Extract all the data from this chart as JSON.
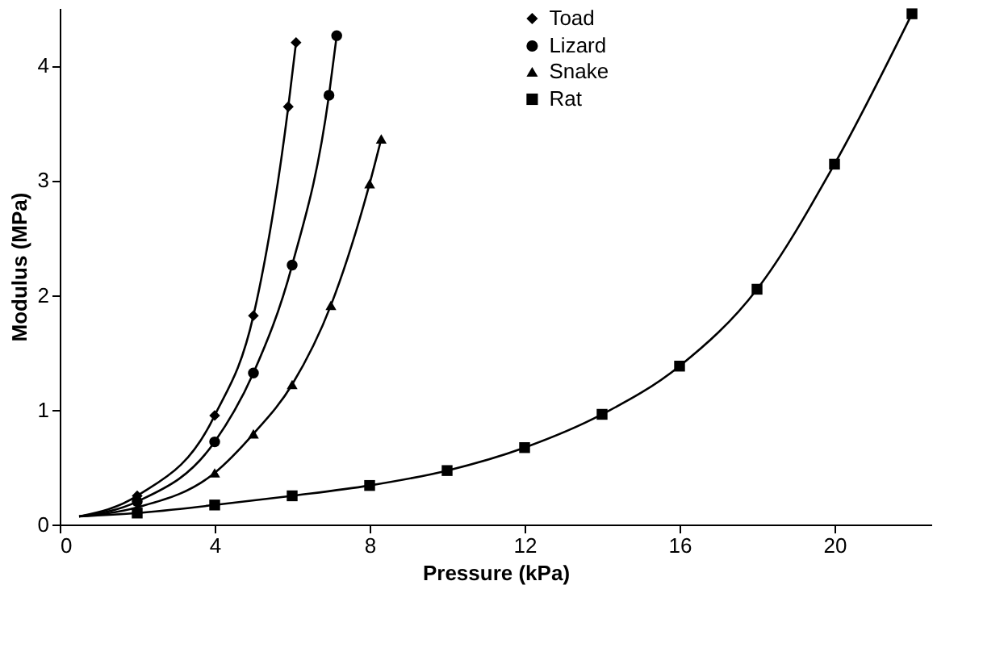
{
  "chart_data": {
    "type": "scatter",
    "xlabel": "Pressure (kPa)",
    "ylabel": "Modulus (MPa)",
    "xlim": [
      0,
      22.5
    ],
    "ylim": [
      0,
      4.5
    ],
    "xticks": [
      0,
      4,
      8,
      12,
      16,
      20
    ],
    "yticks": [
      0,
      1,
      2,
      3,
      4
    ],
    "grid": false,
    "legend": "top right",
    "series": [
      {
        "name": "Toad",
        "color": "#000000",
        "marker": "diamond",
        "x": [
          2,
          4,
          5,
          5.9,
          6.1
        ],
        "values": [
          0.25,
          0.95,
          1.82,
          3.64,
          4.2
        ]
      },
      {
        "name": "Lizard",
        "color": "#000000",
        "marker": "circle",
        "x": [
          2,
          4,
          5,
          6,
          6.95,
          7.15
        ],
        "values": [
          0.2,
          0.72,
          1.32,
          2.26,
          3.74,
          4.26
        ]
      },
      {
        "name": "Snake",
        "color": "#000000",
        "marker": "triangle",
        "x": [
          4,
          5,
          6,
          7,
          8,
          8.3
        ],
        "values": [
          0.45,
          0.79,
          1.22,
          1.91,
          2.97,
          3.36
        ]
      },
      {
        "name": "Rat",
        "color": "#000000",
        "marker": "square",
        "x": [
          2,
          4,
          6,
          8,
          10,
          12,
          14,
          16,
          18,
          20,
          22
        ],
        "values": [
          0.1,
          0.17,
          0.25,
          0.34,
          0.47,
          0.67,
          0.96,
          1.38,
          2.05,
          3.14,
          4.45
        ]
      },
      {
        "type": "line",
        "color": "#000000",
        "marker": "none",
        "x": [
          0.5,
          2,
          4,
          5,
          5.9,
          6.1
        ],
        "values": [
          0.07,
          0.25,
          0.95,
          1.82,
          3.64,
          4.2
        ]
      },
      {
        "type": "line",
        "color": "#000000",
        "marker": "none",
        "x": [
          0.5,
          2,
          4,
          5,
          6,
          6.95,
          7.15
        ],
        "values": [
          0.07,
          0.2,
          0.72,
          1.32,
          2.26,
          3.74,
          4.26
        ]
      },
      {
        "type": "line",
        "color": "#000000",
        "marker": "none",
        "x": [
          0.5,
          2,
          4,
          5,
          6,
          7,
          8,
          8.3
        ],
        "values": [
          0.07,
          0.15,
          0.45,
          0.79,
          1.22,
          1.91,
          2.97,
          3.36
        ]
      },
      {
        "type": "line",
        "color": "#000000",
        "marker": "none",
        "x": [
          0.5,
          2,
          4,
          6,
          8,
          10,
          12,
          14,
          16,
          18,
          20,
          22
        ],
        "values": [
          0.07,
          0.1,
          0.17,
          0.25,
          0.34,
          0.47,
          0.67,
          0.96,
          1.38,
          2.05,
          3.14,
          4.45
        ]
      }
    ]
  }
}
